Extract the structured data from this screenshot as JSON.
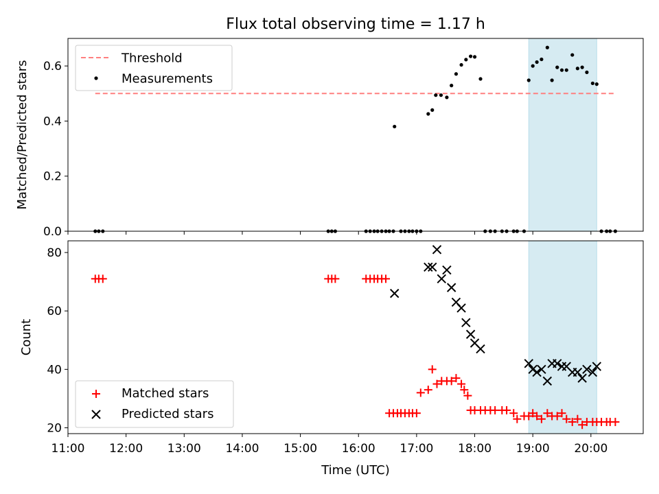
{
  "chart_data": [
    {
      "type": "scatter",
      "title": "Flux total observing time = 1.17 h",
      "xlabel": "",
      "ylabel": "Matched/Predicted stars",
      "xlim": [
        11.0,
        20.9
      ],
      "ylim": [
        0.0,
        0.7
      ],
      "yticks": [
        0.0,
        0.2,
        0.4,
        0.6
      ],
      "ytick_labels": [
        "0.0",
        "0.2",
        "0.4",
        "0.6"
      ],
      "legend_position": "upper-left",
      "highlight_span": [
        18.93,
        20.1
      ],
      "threshold": {
        "name": "Threshold",
        "x": [
          11.47,
          20.4
        ],
        "y": 0.5,
        "color": "#ff7f7f"
      },
      "series": [
        {
          "name": "Measurements",
          "color": "#000000",
          "x": [
            11.47,
            11.53,
            11.6,
            15.48,
            15.54,
            15.6,
            16.13,
            16.2,
            16.27,
            16.33,
            16.4,
            16.47,
            16.53,
            16.6,
            16.73,
            16.8,
            16.87,
            16.93,
            17.0,
            17.07,
            16.62,
            17.2,
            17.27,
            17.33,
            17.42,
            17.52,
            17.6,
            17.68,
            17.77,
            17.85,
            17.93,
            18.0,
            18.1,
            18.18,
            18.27,
            18.35,
            18.47,
            18.55,
            18.67,
            18.73,
            18.85,
            18.93,
            19.0,
            19.07,
            19.15,
            19.25,
            19.33,
            19.42,
            19.5,
            19.58,
            19.68,
            19.77,
            19.85,
            19.93,
            20.03,
            20.1,
            20.18,
            20.27,
            20.33,
            20.42
          ],
          "y": [
            0,
            0,
            0,
            0,
            0,
            0,
            0,
            0,
            0,
            0,
            0,
            0,
            0,
            0,
            0,
            0,
            0,
            0,
            0,
            0,
            0.38,
            0.426,
            0.44,
            0.494,
            0.494,
            0.486,
            0.529,
            0.571,
            0.604,
            0.623,
            0.635,
            0.633,
            0.553,
            0,
            0,
            0,
            0,
            0,
            0,
            0,
            0,
            0.548,
            0.6,
            0.614,
            0.624,
            0.667,
            0.548,
            0.595,
            0.585,
            0.585,
            0.64,
            0.591,
            0.595,
            0.577,
            0.537,
            0.534,
            0,
            0,
            0,
            0
          ]
        }
      ]
    },
    {
      "type": "scatter",
      "title": "",
      "xlabel": "Time (UTC)",
      "ylabel": "Count",
      "xlim": [
        11.0,
        20.9
      ],
      "ylim": [
        18,
        84
      ],
      "yticks": [
        20,
        40,
        60,
        80
      ],
      "ytick_labels": [
        "20",
        "40",
        "60",
        "80"
      ],
      "xticks": [
        11,
        12,
        13,
        14,
        15,
        16,
        17,
        18,
        19,
        20
      ],
      "xtick_labels": [
        "11:00",
        "12:00",
        "13:00",
        "14:00",
        "15:00",
        "16:00",
        "17:00",
        "18:00",
        "19:00",
        "20:00"
      ],
      "legend_position": "lower-left",
      "highlight_span": [
        18.93,
        20.1
      ],
      "series": [
        {
          "name": "Matched stars",
          "marker": "+",
          "color": "#ff0000",
          "x": [
            11.47,
            11.53,
            11.6,
            15.48,
            15.54,
            15.6,
            16.13,
            16.2,
            16.27,
            16.33,
            16.4,
            16.47,
            16.53,
            16.6,
            16.67,
            16.73,
            16.8,
            16.87,
            16.93,
            17.0,
            17.07,
            17.2,
            17.27,
            17.35,
            17.43,
            17.52,
            17.6,
            17.68,
            17.77,
            17.82,
            17.88,
            17.93,
            18.0,
            18.1,
            18.18,
            18.27,
            18.35,
            18.47,
            18.55,
            18.67,
            18.73,
            18.85,
            18.93,
            19.0,
            19.07,
            19.15,
            19.25,
            19.33,
            19.42,
            19.5,
            19.58,
            19.68,
            19.77,
            19.85,
            19.93,
            20.03,
            20.1,
            20.18,
            20.27,
            20.33,
            20.42
          ],
          "y": [
            71,
            71,
            71,
            71,
            71,
            71,
            71,
            71,
            71,
            71,
            71,
            71,
            25,
            25,
            25,
            25,
            25,
            25,
            25,
            25,
            32,
            33,
            40,
            35,
            36,
            36,
            36,
            37,
            35,
            33,
            31,
            26,
            26,
            26,
            26,
            26,
            26,
            26,
            26,
            25,
            23,
            24,
            24,
            25,
            24,
            23,
            25,
            24,
            24,
            25,
            23,
            22,
            23,
            21,
            22,
            22,
            22,
            22,
            22,
            22,
            22
          ]
        },
        {
          "name": "Predicted stars",
          "marker": "x",
          "color": "#000000",
          "x": [
            16.62,
            17.2,
            17.27,
            17.35,
            17.43,
            17.52,
            17.6,
            17.68,
            17.77,
            17.85,
            17.93,
            18.0,
            18.1,
            18.93,
            19.0,
            19.07,
            19.15,
            19.25,
            19.33,
            19.42,
            19.5,
            19.58,
            19.68,
            19.77,
            19.85,
            19.93,
            20.03,
            20.1
          ],
          "y": [
            66,
            75,
            75,
            81,
            71,
            74,
            68,
            63,
            61,
            56,
            52,
            49,
            47,
            42,
            40,
            39,
            40,
            36,
            42,
            42,
            41,
            41,
            39,
            39,
            37,
            40,
            39,
            41
          ]
        }
      ]
    }
  ]
}
